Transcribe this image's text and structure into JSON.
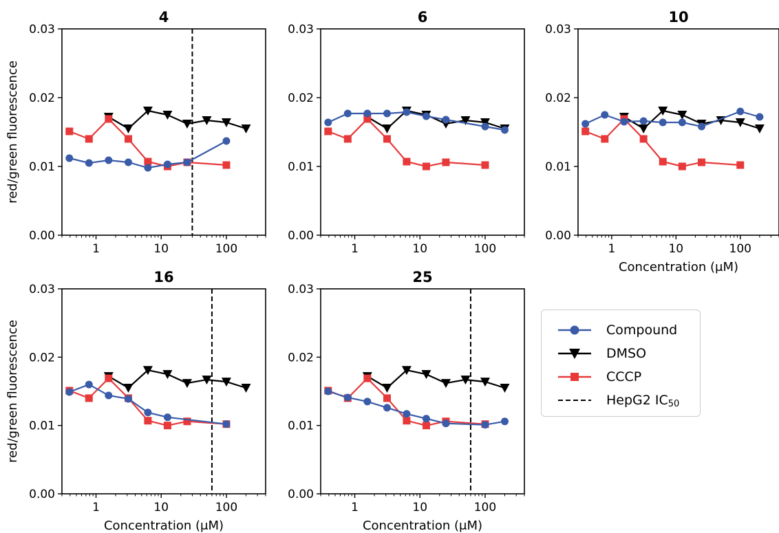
{
  "chart_data": {
    "type": "line",
    "x_scale": "log",
    "xlim": [
      0.3,
      400
    ],
    "ylim": [
      0,
      0.03
    ],
    "x_ticks": [
      1,
      10,
      100
    ],
    "x_tick_labels": [
      "1",
      "10",
      "100"
    ],
    "y_ticks": [
      0,
      0.01,
      0.02,
      0.03
    ],
    "y_tick_labels": [
      "0.00",
      "0.01",
      "0.02",
      "0.03"
    ],
    "ylabel": "red/green fluorescence",
    "xlabel": "Concentration (μM)",
    "grid": false,
    "legend_placement": "bottom-right",
    "legend": {
      "entries": [
        {
          "key": "compound",
          "label": "Compound",
          "color": "#3a5ba8",
          "marker": "circle",
          "line": "solid"
        },
        {
          "key": "dmso",
          "label": "DMSO",
          "color": "#000000",
          "marker": "triangle-down",
          "line": "solid"
        },
        {
          "key": "cccp",
          "label": "CCCP",
          "color": "#e8393a",
          "marker": "square",
          "line": "solid"
        },
        {
          "key": "ic50",
          "label": "HepG2 IC",
          "label_sub": "50",
          "color": "#000000",
          "marker": "none",
          "line": "dashed"
        }
      ]
    },
    "dmso": {
      "x": [
        1.56,
        3.13,
        6.25,
        12.5,
        25,
        50,
        100,
        200
      ],
      "y": [
        0.0172,
        0.0155,
        0.0181,
        0.0175,
        0.0162,
        0.0167,
        0.0164,
        0.0155
      ]
    },
    "cccp": {
      "x": [
        0.39,
        0.78,
        1.56,
        3.13,
        6.25,
        12.5,
        25,
        100
      ],
      "y": [
        0.0151,
        0.014,
        0.0169,
        0.014,
        0.0107,
        0.01,
        0.0106,
        0.0102
      ]
    },
    "panels": [
      {
        "title": "4",
        "compound": {
          "x": [
            0.39,
            0.78,
            1.56,
            3.13,
            6.25,
            12.5,
            25,
            100
          ],
          "y": [
            0.0112,
            0.0105,
            0.0109,
            0.0106,
            0.0098,
            0.0103,
            0.0106,
            0.0137
          ]
        },
        "ic50": 30,
        "show_ylabel": true,
        "show_xlabel": false
      },
      {
        "title": "6",
        "compound": {
          "x": [
            0.39,
            0.78,
            1.56,
            3.13,
            6.25,
            12.5,
            25,
            100,
            200
          ],
          "y": [
            0.0164,
            0.0177,
            0.0177,
            0.0177,
            0.0179,
            0.0173,
            0.0168,
            0.0158,
            0.0153
          ]
        },
        "ic50": null,
        "show_ylabel": false,
        "show_xlabel": false
      },
      {
        "title": "10",
        "compound": {
          "x": [
            0.39,
            0.78,
            1.56,
            3.13,
            6.25,
            12.5,
            25,
            100,
            200
          ],
          "y": [
            0.0162,
            0.0175,
            0.0165,
            0.0166,
            0.0164,
            0.0164,
            0.0158,
            0.018,
            0.0172
          ]
        },
        "ic50": null,
        "show_ylabel": false,
        "show_xlabel": true
      },
      {
        "title": "16",
        "compound": {
          "x": [
            0.39,
            0.78,
            1.56,
            3.13,
            6.25,
            12.5,
            100
          ],
          "y": [
            0.0149,
            0.016,
            0.0144,
            0.0139,
            0.0119,
            0.0112,
            0.0102
          ]
        },
        "ic50": 60,
        "show_ylabel": true,
        "show_xlabel": true
      },
      {
        "title": "25",
        "compound": {
          "x": [
            0.39,
            0.78,
            1.56,
            3.13,
            6.25,
            12.5,
            25,
            100,
            200
          ],
          "y": [
            0.015,
            0.0141,
            0.0135,
            0.0126,
            0.0117,
            0.011,
            0.0103,
            0.0101,
            0.0106
          ]
        },
        "ic50": 60,
        "show_ylabel": false,
        "show_xlabel": true
      }
    ]
  }
}
